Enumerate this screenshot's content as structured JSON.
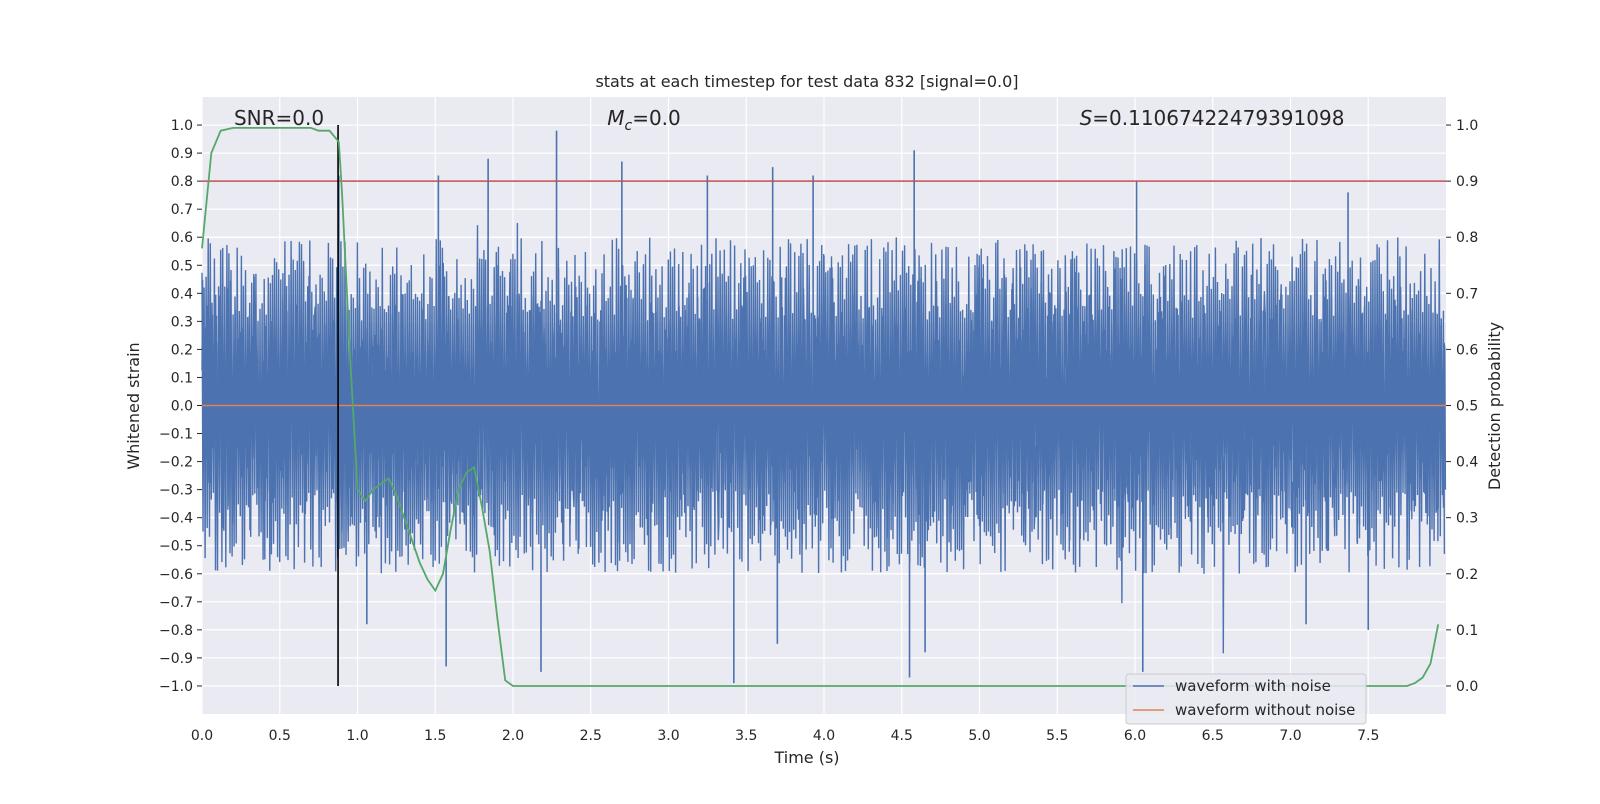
{
  "chart_data": {
    "type": "line",
    "title": "stats at each timestep for test data 832 [signal=0.0]",
    "xlabel": "Time (s)",
    "ylabel_left": "Whitened strain",
    "ylabel_right": "Detection probability",
    "xlim": [
      0.0,
      8.0
    ],
    "ylim_left": [
      -1.1,
      1.1
    ],
    "ylim_right": [
      -0.05,
      1.05
    ],
    "x_ticks": [
      0.0,
      0.5,
      1.0,
      1.5,
      2.0,
      2.5,
      3.0,
      3.5,
      4.0,
      4.5,
      5.0,
      5.5,
      6.0,
      6.5,
      7.0,
      7.5
    ],
    "x_tick_labels": [
      "0.0",
      "0.5",
      "1.0",
      "1.5",
      "2.0",
      "2.5",
      "3.0",
      "3.5",
      "4.0",
      "4.5",
      "5.0",
      "5.5",
      "6.0",
      "6.5",
      "7.0",
      "7.5"
    ],
    "y_left_ticks": [
      1.0,
      0.9,
      0.8,
      0.7,
      0.6,
      0.5,
      0.4,
      0.3,
      0.2,
      0.1,
      0.0,
      -0.1,
      -0.2,
      -0.3,
      -0.4,
      -0.5,
      -0.6,
      -0.7,
      -0.8,
      -0.9,
      -1.0
    ],
    "y_left_tick_labels": [
      "1.0",
      "0.9",
      "0.8",
      "0.7",
      "0.6",
      "0.5",
      "0.4",
      "0.3",
      "0.2",
      "0.1",
      "0.0",
      "−0.1",
      "−0.2",
      "−0.3",
      "−0.4",
      "−0.5",
      "−0.6",
      "−0.7",
      "−0.8",
      "−0.9",
      "−1.0"
    ],
    "y_right_ticks": [
      1.0,
      0.9,
      0.8,
      0.7,
      0.6,
      0.5,
      0.4,
      0.3,
      0.2,
      0.1,
      0.0
    ],
    "y_right_tick_labels": [
      "1.0",
      "0.9",
      "0.8",
      "0.7",
      "0.6",
      "0.5",
      "0.4",
      "0.3",
      "0.2",
      "0.1",
      "0.0"
    ],
    "annotations": {
      "snr": "SNR=0.0",
      "mc_symbol": "M",
      "mc_subscript": "c",
      "mc_value": "=0.0",
      "s_symbol": "S",
      "s_value": "=0.11067422479391098"
    },
    "threshold": {
      "axis": "right",
      "value": 0.9,
      "color": "#c44e52"
    },
    "marker_time": 0.875,
    "detection_probability": {
      "name": "Detection probability",
      "color": "#55a868",
      "x": [
        0.0,
        0.06,
        0.12,
        0.2,
        0.3,
        0.4,
        0.5,
        0.6,
        0.7,
        0.75,
        0.82,
        0.88,
        0.9,
        0.95,
        1.0,
        1.05,
        1.1,
        1.15,
        1.2,
        1.25,
        1.3,
        1.35,
        1.4,
        1.45,
        1.5,
        1.55,
        1.6,
        1.65,
        1.7,
        1.75,
        1.8,
        1.85,
        1.9,
        1.95,
        2.0,
        2.06,
        2.2,
        3.0,
        4.0,
        5.0,
        6.0,
        7.0,
        7.6,
        7.75,
        7.8,
        7.85,
        7.9,
        7.95
      ],
      "values": [
        0.78,
        0.95,
        0.99,
        0.995,
        0.995,
        0.995,
        0.995,
        0.995,
        0.995,
        0.99,
        0.99,
        0.97,
        0.88,
        0.6,
        0.35,
        0.33,
        0.35,
        0.36,
        0.37,
        0.34,
        0.3,
        0.26,
        0.22,
        0.19,
        0.17,
        0.2,
        0.28,
        0.35,
        0.38,
        0.39,
        0.32,
        0.24,
        0.12,
        0.01,
        0.0,
        0.0,
        0.0,
        0.0,
        0.0,
        0.0,
        0.0,
        0.0,
        0.0,
        0.0,
        0.005,
        0.015,
        0.04,
        0.11
      ]
    },
    "series": [
      {
        "name": "waveform with noise",
        "color": "#4c72b0",
        "description": "whitened noise samples, 2048 Hz, roughly within ±0.6 with peaks near ±0.97",
        "peaks": [
          {
            "t": 0.88,
            "v": 0.82
          },
          {
            "t": 1.52,
            "v": 0.82
          },
          {
            "t": 1.84,
            "v": 0.88
          },
          {
            "t": 2.28,
            "v": 0.98
          },
          {
            "t": 2.7,
            "v": 0.87
          },
          {
            "t": 3.25,
            "v": 0.82
          },
          {
            "t": 3.67,
            "v": 0.85
          },
          {
            "t": 3.93,
            "v": 0.82
          },
          {
            "t": 4.58,
            "v": 0.91
          },
          {
            "t": 6.01,
            "v": 0.8
          },
          {
            "t": 7.37,
            "v": 0.76
          },
          {
            "t": 1.06,
            "v": -0.78
          },
          {
            "t": 1.57,
            "v": -0.93
          },
          {
            "t": 2.18,
            "v": -0.95
          },
          {
            "t": 3.42,
            "v": -0.99
          },
          {
            "t": 3.7,
            "v": -0.85
          },
          {
            "t": 4.55,
            "v": -0.97
          },
          {
            "t": 4.65,
            "v": -0.88
          },
          {
            "t": 6.05,
            "v": -0.95
          },
          {
            "t": 7.1,
            "v": -0.78
          },
          {
            "t": 7.5,
            "v": -0.8
          }
        ]
      },
      {
        "name": "waveform without noise",
        "color": "#dd8452",
        "value": 0.0
      }
    ],
    "legend": {
      "placement": "bottom-right",
      "entries": [
        "waveform with noise",
        "waveform without noise"
      ]
    },
    "grid": true
  }
}
